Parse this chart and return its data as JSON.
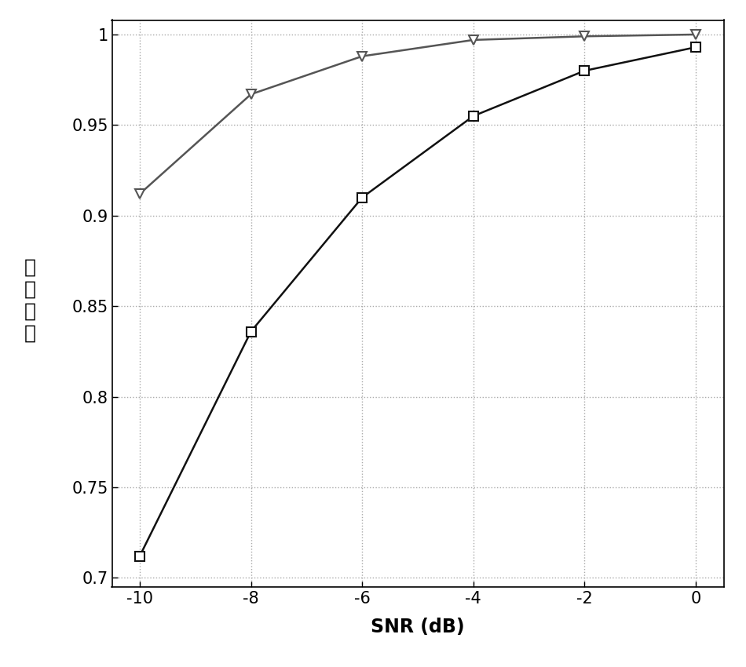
{
  "snr_values": [
    -10,
    -8,
    -6,
    -4,
    -2,
    0
  ],
  "line1_values": [
    0.912,
    0.967,
    0.988,
    0.997,
    0.999,
    1.0
  ],
  "line2_values": [
    0.712,
    0.836,
    0.91,
    0.955,
    0.98,
    0.993
  ],
  "line1_color": "#555555",
  "line2_color": "#111111",
  "line1_marker": "v",
  "line2_marker": "s",
  "line_width": 1.8,
  "marker_size": 8,
  "xlabel": "SNR (dB)",
  "ylabel_chars": [
    "感",
    "知",
    "精",
    "度"
  ],
  "xlim": [
    -10.5,
    0.5
  ],
  "ylim": [
    0.695,
    1.008
  ],
  "yticks": [
    0.7,
    0.75,
    0.8,
    0.85,
    0.9,
    0.95,
    1.0
  ],
  "ytick_labels": [
    "0.7",
    "0.75",
    "0.8",
    "0.85",
    "0.9",
    "0.95",
    "1"
  ],
  "xticks": [
    -10,
    -8,
    -6,
    -4,
    -2,
    0
  ],
  "grid_color": "#aaaaaa",
  "background_color": "#ffffff",
  "xlabel_fontsize": 17,
  "ylabel_fontsize": 18,
  "tick_fontsize": 15
}
